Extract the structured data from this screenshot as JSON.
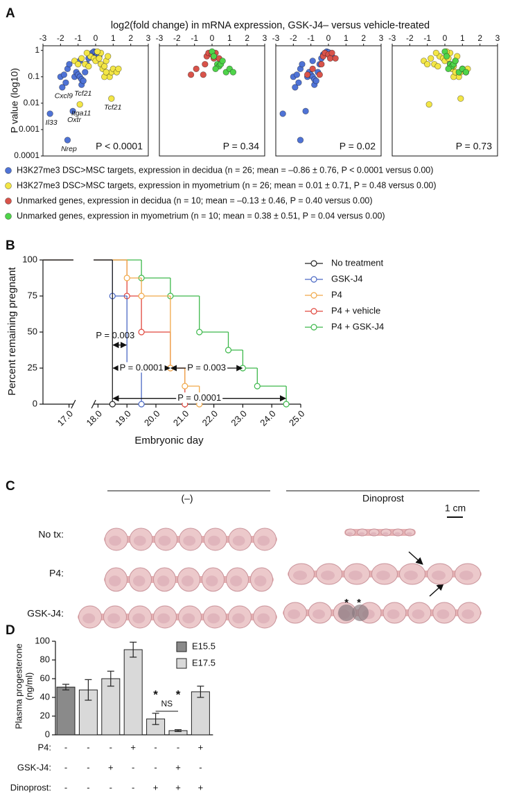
{
  "panel_labels": [
    "A",
    "B",
    "C",
    "D"
  ],
  "chart_data": [
    {
      "type": "scatter",
      "title": "log2(fold change) in mRNA expression, GSK-J4– versus vehicle-treated",
      "ylabel": "P value (log10)",
      "annotation": "P < 0.0001",
      "xlim": [
        -3,
        3
      ],
      "ylim": [
        0.0001,
        1.5
      ],
      "log_y": true,
      "xticks": [
        -3,
        -2,
        -1,
        0,
        1,
        2,
        3
      ],
      "yticks": [
        1,
        0.1,
        0.01,
        0.001,
        0.0001
      ],
      "series": [
        {
          "name": "H3K27me3 DSC>MSC targets, expression in decidua (n = 26; mean = –0.86 ± 0.76, P < 0.0001 versus 0.00)",
          "color": "#4f73d6",
          "x": [
            -2.6,
            -1.6,
            -1.3,
            -1.9,
            -0.8,
            -2.0,
            -1.8,
            -1.6,
            -1.5,
            -1.2,
            -1.1,
            -1.0,
            -0.9,
            -0.8,
            -0.7,
            -0.6,
            -0.5,
            -0.4,
            -0.3,
            -0.2,
            -0.1,
            0,
            0.1,
            0.2,
            -1.7,
            -0.9
          ],
          "values": [
            0.004,
            0.0004,
            0.005,
            0.04,
            0.05,
            0.1,
            0.12,
            0.2,
            0.3,
            0.1,
            0.15,
            0.12,
            0.1,
            0.08,
            0.07,
            0.15,
            0.3,
            0.5,
            0.7,
            0.8,
            0.9,
            0.85,
            0.7,
            0.6,
            0.06,
            0.4
          ],
          "point_labels": [
            "Il33",
            "Nrep",
            "Oxtr",
            "Cxcl9",
            "Tcf21",
            null,
            null,
            null,
            null,
            null,
            null,
            null,
            null,
            null,
            null,
            null,
            null,
            null,
            null,
            null,
            null,
            null,
            null,
            null,
            null,
            null
          ]
        },
        {
          "name": "H3K27me3 DSC>MSC targets, expression in myometrium (n = 26; mean = 0.01 ± 0.71, P = 0.48 versus 0.00)",
          "color": "#f3e646",
          "x": [
            -0.9,
            0.9,
            -1.2,
            -1.0,
            -0.8,
            -0.6,
            -0.4,
            -0.3,
            -0.1,
            0,
            0.2,
            0.3,
            0.4,
            0.5,
            0.6,
            0.7,
            0.8,
            0.9,
            1.0,
            1.2,
            1.3,
            0.3,
            0.5,
            -0.5,
            0.1,
            0.6
          ],
          "values": [
            0.009,
            0.015,
            0.4,
            0.3,
            0.5,
            0.3,
            0.25,
            0.6,
            0.5,
            0.4,
            0.5,
            0.3,
            0.2,
            0.25,
            0.4,
            0.6,
            0.1,
            0.15,
            0.2,
            0.15,
            0.2,
            0.8,
            0.1,
            0.8,
            0.9,
            0.15
          ],
          "point_labels": [
            "Itga11",
            "Tcf21",
            null,
            null,
            null,
            null,
            null,
            null,
            null,
            null,
            null,
            null,
            null,
            null,
            null,
            null,
            null,
            null,
            null,
            null,
            null,
            null,
            null,
            null,
            null,
            null
          ]
        }
      ]
    },
    {
      "type": "scatter",
      "annotation": "P = 0.34",
      "xlim": [
        -3,
        3
      ],
      "ylim": [
        0.0001,
        1.5
      ],
      "log_y": true,
      "xticks": [
        -3,
        -2,
        -1,
        0,
        1,
        2,
        3
      ],
      "series": [
        {
          "name": "Unmarked genes, expression in decidua (n = 10; mean = –0.13 ± 0.46, P = 0.40 versus 0.00)",
          "color": "#d9534a",
          "x": [
            -1.2,
            -0.9,
            -0.5,
            -0.4,
            -0.3,
            -0.2,
            0,
            0.1,
            0.2,
            0.4
          ],
          "values": [
            0.12,
            0.2,
            0.12,
            0.3,
            0.6,
            0.8,
            0.7,
            0.5,
            0.8,
            0.5
          ]
        },
        {
          "name": "Unmarked genes, expression in myometrium (n = 10; mean = 0.38 ± 0.51, P = 0.04 versus 0.00)",
          "color": "#4fd44a",
          "x": [
            0,
            0.1,
            0.3,
            0.4,
            0.5,
            0.6,
            0.8,
            1.0,
            1.2,
            0.2
          ],
          "values": [
            0.9,
            0.6,
            0.3,
            0.25,
            0.3,
            0.4,
            0.15,
            0.2,
            0.15,
            0.2
          ]
        }
      ]
    },
    {
      "type": "scatter",
      "annotation": "P = 0.02",
      "xlim": [
        -3,
        3
      ],
      "ylim": [
        0.0001,
        1.5
      ],
      "log_y": true,
      "xticks": [
        -3,
        -2,
        -1,
        0,
        1,
        2,
        3
      ],
      "series": [
        {
          "color": "#4f73d6",
          "x": [
            -2.6,
            -1.6,
            -1.3,
            -1.9,
            -0.8,
            -2.0,
            -1.8,
            -1.6,
            -1.5,
            -1.2,
            -1.1,
            -1.0,
            -0.9,
            -0.8,
            -0.7,
            -0.6,
            -0.5,
            -0.4,
            -0.3,
            -0.2,
            -0.1,
            0,
            0.1,
            0.2,
            -1.7,
            -0.9
          ],
          "values": [
            0.004,
            0.0004,
            0.005,
            0.04,
            0.05,
            0.1,
            0.12,
            0.2,
            0.3,
            0.1,
            0.15,
            0.12,
            0.1,
            0.08,
            0.07,
            0.15,
            0.3,
            0.5,
            0.7,
            0.8,
            0.9,
            0.85,
            0.7,
            0.6,
            0.06,
            0.4
          ]
        },
        {
          "color": "#d9534a",
          "x": [
            -1.2,
            -0.9,
            -0.5,
            -0.4,
            -0.3,
            -0.2,
            0,
            0.1,
            0.2,
            0.4
          ],
          "values": [
            0.12,
            0.2,
            0.12,
            0.3,
            0.6,
            0.8,
            0.7,
            0.5,
            0.8,
            0.5
          ]
        }
      ]
    },
    {
      "type": "scatter",
      "annotation": "P = 0.73",
      "xlim": [
        -3,
        3
      ],
      "ylim": [
        0.0001,
        1.5
      ],
      "log_y": true,
      "xticks": [
        -3,
        -2,
        -1,
        0,
        1,
        2,
        3
      ],
      "series": [
        {
          "color": "#f3e646",
          "x": [
            -0.9,
            0.9,
            -1.2,
            -1.0,
            -0.8,
            -0.6,
            -0.4,
            -0.3,
            -0.1,
            0,
            0.2,
            0.3,
            0.4,
            0.5,
            0.6,
            0.7,
            0.8,
            0.9,
            1.0,
            1.2,
            1.3,
            0.3,
            0.5,
            -0.5,
            0.1,
            0.6
          ],
          "values": [
            0.009,
            0.015,
            0.4,
            0.3,
            0.5,
            0.3,
            0.25,
            0.6,
            0.5,
            0.4,
            0.5,
            0.3,
            0.2,
            0.25,
            0.4,
            0.6,
            0.1,
            0.15,
            0.2,
            0.15,
            0.2,
            0.8,
            0.1,
            0.8,
            0.9,
            0.15
          ]
        },
        {
          "color": "#4fd44a",
          "x": [
            0,
            0.1,
            0.3,
            0.4,
            0.5,
            0.6,
            0.8,
            1.0,
            1.2,
            0.2
          ],
          "values": [
            0.9,
            0.6,
            0.3,
            0.25,
            0.3,
            0.4,
            0.15,
            0.2,
            0.15,
            0.2
          ]
        }
      ]
    },
    {
      "type": "step",
      "xlabel": "Embryonic day",
      "ylabel": "Percent remaining pregnant",
      "xlim": [
        16.1,
        25.0
      ],
      "ylim": [
        0,
        100
      ],
      "x_break": [
        17.15,
        17.85
      ],
      "yticks": [
        0,
        25,
        50,
        75,
        100
      ],
      "xticks": [
        {
          "value": 17,
          "label": "17.0"
        },
        {
          "value": 18,
          "label": "18.0"
        },
        {
          "value": 19,
          "label": "19.0"
        },
        {
          "value": 20,
          "label": "20.0"
        },
        {
          "value": 21,
          "label": "21.0"
        },
        {
          "value": 22,
          "label": "22.0"
        },
        {
          "value": 23,
          "label": "23.0"
        },
        {
          "value": 24,
          "label": "24.0"
        },
        {
          "value": 25,
          "label": "25.0"
        }
      ],
      "series": [
        {
          "name": "No treatment",
          "color": "#222222",
          "x": [
            18.5
          ],
          "values": [
            0
          ]
        },
        {
          "name": "GSK-J4",
          "color": "#4a68c4",
          "x": [
            18.5,
            19,
            19.5
          ],
          "values": [
            75,
            25,
            0
          ]
        },
        {
          "name": "P4",
          "color": "#f0a848",
          "x": [
            19,
            19.5,
            20.5,
            21,
            21.5
          ],
          "values": [
            87.5,
            75,
            25,
            12.5,
            0
          ]
        },
        {
          "name": "P4 + vehicle",
          "color": "#e0463c",
          "x": [
            19,
            19.5,
            20.5,
            21
          ],
          "values": [
            75,
            50,
            25,
            0
          ]
        },
        {
          "name": "P4 + GSK-J4",
          "color": "#3cb84a",
          "x": [
            19.5,
            20.5,
            21.5,
            22.5,
            23,
            23.5,
            24.5
          ],
          "values": [
            87.5,
            75,
            50,
            37.5,
            25,
            12.5,
            0
          ]
        }
      ],
      "annotations": [
        {
          "text": "P = 0.003",
          "from": 18.5,
          "to": 19,
          "y": 41
        },
        {
          "text": "P = 0.0001",
          "from": 18.5,
          "to": 20.5,
          "y": 25
        },
        {
          "text": "P = 0.003",
          "from": 20.5,
          "to": 23,
          "y": 25
        },
        {
          "text": "P = 0.0001",
          "from": 18.5,
          "to": 24.5,
          "y": 4
        }
      ]
    },
    {
      "type": "bar",
      "ylabel": [
        "Plasma progesterone",
        "(ng/ml)"
      ],
      "ylim": [
        0,
        100
      ],
      "yticks": [
        0,
        20,
        40,
        60,
        80,
        100
      ],
      "series": [
        {
          "name": "E15.5",
          "color": "#8a8a8a",
          "values": [
            51,
            null,
            null,
            null,
            null,
            null,
            null
          ],
          "errors": [
            3,
            null,
            null,
            null,
            null,
            null,
            null
          ]
        },
        {
          "name": "E17.5",
          "color": "#d9d9d9",
          "values": [
            null,
            48,
            60,
            91,
            17,
            4.5,
            46
          ],
          "errors": [
            null,
            11,
            8,
            8,
            6,
            1,
            6
          ]
        }
      ],
      "significance": [
        null,
        null,
        null,
        null,
        "*",
        "*",
        null
      ],
      "comparison": {
        "label": "NS",
        "bars": [
          4,
          5
        ]
      },
      "treatment_table": [
        {
          "label": "P4:",
          "cells": [
            "-",
            "-",
            "-",
            "+",
            "-",
            "-",
            "+"
          ]
        },
        {
          "label": "GSK-J4:",
          "cells": [
            "-",
            "-",
            "+",
            "-",
            "-",
            "+",
            "-"
          ]
        },
        {
          "label": "Dinoprost:",
          "cells": [
            "-",
            "-",
            "-",
            "-",
            "+",
            "+",
            "+"
          ]
        }
      ]
    }
  ],
  "panel_c": {
    "columns": [
      "(–)",
      "Dinoprost"
    ],
    "rows": [
      "No tx:",
      "P4:",
      "GSK-J4:"
    ],
    "scale_bar": "1 cm",
    "asterisks": [
      "*",
      "*"
    ]
  }
}
